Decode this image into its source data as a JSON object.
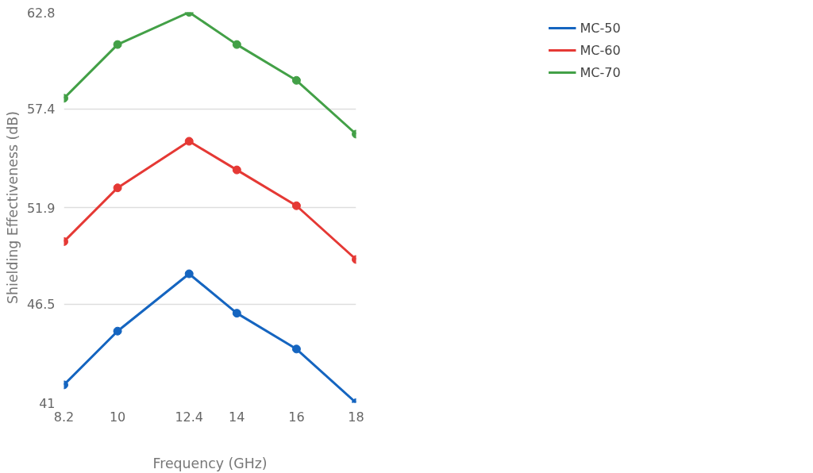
{
  "chart_data": {
    "type": "line",
    "xlabel": "Frequency (GHz)",
    "ylabel": "Shielding Effectiveness (dB)",
    "x": [
      8.2,
      10,
      12.4,
      14,
      16,
      18
    ],
    "series": [
      {
        "name": "MC-50",
        "color": "#1565c0",
        "values": [
          42.0,
          45.0,
          48.2,
          46.0,
          44.0,
          41.0
        ]
      },
      {
        "name": "MC-60",
        "color": "#e53935",
        "values": [
          50.0,
          53.0,
          55.6,
          54.0,
          52.0,
          49.0
        ]
      },
      {
        "name": "MC-70",
        "color": "#43a047",
        "values": [
          58.0,
          61.0,
          62.8,
          61.0,
          59.0,
          56.0
        ]
      }
    ],
    "xlim": [
      8.2,
      18
    ],
    "xticks": [
      8.2,
      10,
      12.4,
      14,
      16,
      18
    ],
    "ylim": [
      41,
      62.8
    ],
    "yticks": [
      41,
      46.5,
      51.9,
      57.4,
      62.8
    ],
    "grid": "y",
    "legend": "top right",
    "marker": "circle",
    "line_style": "solid"
  }
}
